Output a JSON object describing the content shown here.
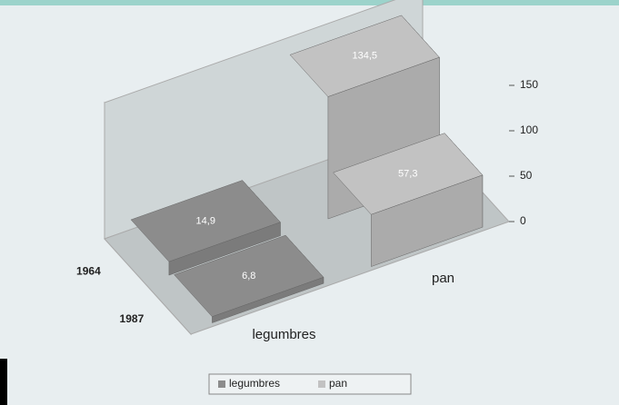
{
  "chart_data": {
    "type": "bar3d",
    "categories": [
      "legumbres",
      "pan"
    ],
    "depth": [
      "1964",
      "1987"
    ],
    "series": [
      {
        "name": "legumbres",
        "color": "#8c8c8c",
        "values": [
          14.9,
          6.8
        ],
        "value_labels": [
          "14,9",
          "6,8"
        ]
      },
      {
        "name": "pan",
        "color": "#c2c2c2",
        "values": [
          134.5,
          57.3
        ],
        "value_labels": [
          "134,5",
          "57,3"
        ]
      }
    ],
    "ylim": [
      0,
      150
    ],
    "yticks": [
      0,
      50,
      100,
      150
    ],
    "legend": "bottom"
  }
}
